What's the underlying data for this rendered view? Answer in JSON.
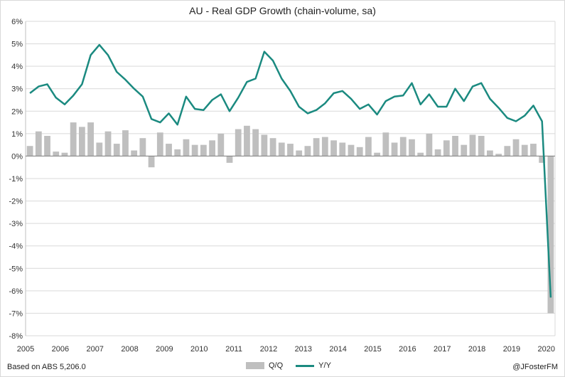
{
  "chart_data": {
    "type": "bar+line",
    "title": "AU - Real GDP Growth (chain-volume, sa)",
    "xlabel": "",
    "ylabel": "",
    "ylim": [
      -8,
      6
    ],
    "y_ticks": [
      "-8%",
      "-7%",
      "-6%",
      "-5%",
      "-4%",
      "-3%",
      "-2%",
      "-1%",
      "0%",
      "1%",
      "2%",
      "3%",
      "4%",
      "5%",
      "6%"
    ],
    "x_tick_labels": [
      "2005",
      "2006",
      "2007",
      "2008",
      "2009",
      "2010",
      "2011",
      "2012",
      "2013",
      "2014",
      "2015",
      "2016",
      "2017",
      "2018",
      "2019",
      "2020"
    ],
    "x_range": [
      2005.0,
      2020.25
    ],
    "x": [
      2005.0,
      2005.25,
      2005.5,
      2005.75,
      2006.0,
      2006.25,
      2006.5,
      2006.75,
      2007.0,
      2007.25,
      2007.5,
      2007.75,
      2008.0,
      2008.25,
      2008.5,
      2008.75,
      2009.0,
      2009.25,
      2009.5,
      2009.75,
      2010.0,
      2010.25,
      2010.5,
      2010.75,
      2011.0,
      2011.25,
      2011.5,
      2011.75,
      2012.0,
      2012.25,
      2012.5,
      2012.75,
      2013.0,
      2013.25,
      2013.5,
      2013.75,
      2014.0,
      2014.25,
      2014.5,
      2014.75,
      2015.0,
      2015.25,
      2015.5,
      2015.75,
      2016.0,
      2016.25,
      2016.5,
      2016.75,
      2017.0,
      2017.25,
      2017.5,
      2017.75,
      2018.0,
      2018.25,
      2018.5,
      2018.75,
      2019.0,
      2019.25,
      2019.5,
      2019.75,
      2020.0
    ],
    "series": [
      {
        "name": "Q/Q",
        "type": "bar",
        "color": "#bfbfbf",
        "values": [
          0.45,
          1.1,
          0.9,
          0.2,
          0.15,
          1.5,
          1.3,
          1.5,
          0.6,
          1.1,
          0.55,
          1.15,
          0.25,
          0.8,
          -0.5,
          1.05,
          0.55,
          0.3,
          0.75,
          0.5,
          0.5,
          0.7,
          1.0,
          -0.3,
          1.2,
          1.35,
          1.2,
          0.95,
          0.8,
          0.6,
          0.55,
          0.25,
          0.45,
          0.8,
          0.85,
          0.7,
          0.6,
          0.5,
          0.4,
          0.85,
          0.15,
          1.05,
          0.6,
          0.85,
          0.75,
          0.15,
          1.0,
          0.3,
          0.7,
          0.9,
          0.5,
          0.95,
          0.9,
          0.25,
          0.1,
          0.45,
          0.75,
          0.5,
          0.55,
          -0.3,
          -7.0
        ]
      },
      {
        "name": "Y/Y",
        "type": "line",
        "color": "#1b8a80",
        "values": [
          2.8,
          3.1,
          3.2,
          2.6,
          2.3,
          2.7,
          3.2,
          4.5,
          4.95,
          4.5,
          3.75,
          3.4,
          3.0,
          2.65,
          1.65,
          1.5,
          1.9,
          1.4,
          2.65,
          2.1,
          2.05,
          2.5,
          2.75,
          2.0,
          2.6,
          3.3,
          3.45,
          4.65,
          4.25,
          3.45,
          2.9,
          2.2,
          1.9,
          2.05,
          2.35,
          2.8,
          2.9,
          2.55,
          2.1,
          2.3,
          1.85,
          2.45,
          2.65,
          2.7,
          3.25,
          2.3,
          2.75,
          2.2,
          2.2,
          3.0,
          2.45,
          3.1,
          3.25,
          2.55,
          2.15,
          1.7,
          1.55,
          1.8,
          2.25,
          1.55,
          -6.3
        ]
      }
    ],
    "legend_position": "bottom-center",
    "grid": "horizontal"
  },
  "footer": {
    "source": "Based on ABS 5,206.0",
    "credit": "@JFosterFM"
  }
}
